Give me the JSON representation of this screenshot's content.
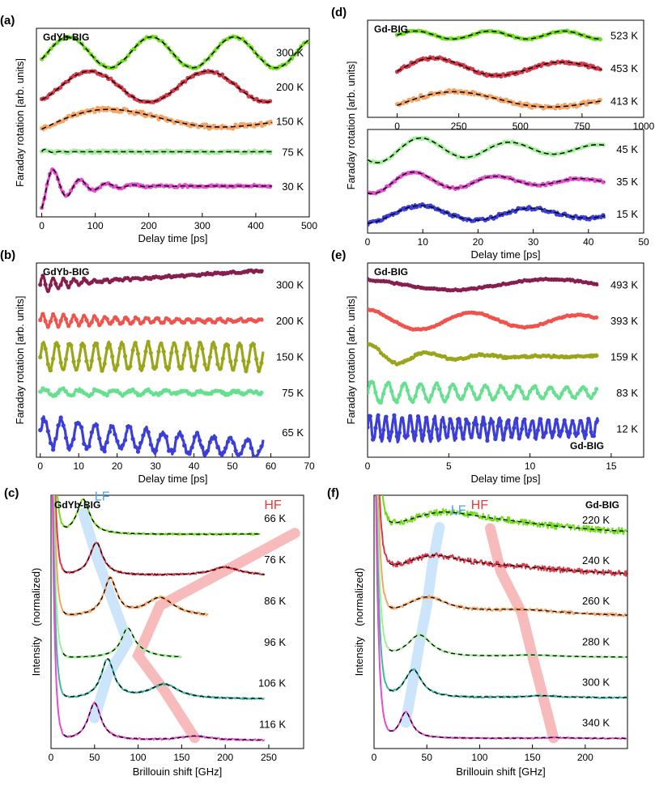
{
  "chart_data": [
    {
      "id": "a",
      "panel_label": "(a)",
      "type": "line",
      "title": "GdYb-BIG",
      "xlabel": "Delay time [ps]",
      "ylabel": "Faraday rotation [arb. units]",
      "xlim": [
        -10,
        500
      ],
      "xticks": [
        0,
        100,
        200,
        300,
        400,
        500
      ],
      "series": [
        {
          "name": "300 K",
          "color": "#6fdc1c",
          "offset": 5.0,
          "amp": 0.45,
          "period": 155,
          "phase": -0.45,
          "decay": 0,
          "noise": 0.03,
          "fit": true,
          "xmax": 500
        },
        {
          "name": "200 K",
          "color": "#d8394a",
          "offset": 4.0,
          "amp": 0.45,
          "period": 220,
          "phase": -1.0,
          "decay": 0,
          "noise": 0.035,
          "fit": true,
          "xmax": 430
        },
        {
          "name": "150 K",
          "color": "#f6a464",
          "offset": 3.0,
          "amp": 0.5,
          "period": 420,
          "phase": -0.5,
          "decay": 0.003,
          "noise": 0.06,
          "fit": true,
          "xmax": 430
        },
        {
          "name": "75 K",
          "color": "#9ef094",
          "offset": 2.1,
          "amp": 0.12,
          "period": 30,
          "phase": 0,
          "decay": 0.08,
          "noise": 0.04,
          "fit": true,
          "xmax": 430
        },
        {
          "name": "30 K",
          "color": "#e64bd0",
          "offset": 1.1,
          "amp": 0.7,
          "period": 50,
          "phase": -1.2,
          "decay": 0.018,
          "noise": 0.03,
          "fit": true,
          "xmax": 430
        }
      ]
    },
    {
      "id": "b",
      "panel_label": "(b)",
      "type": "line",
      "title": "GdYb-BIG",
      "xlabel": "Delay time [ps]",
      "ylabel": "Faraday rotation [arb. units]",
      "xlim": [
        -1,
        70
      ],
      "xticks": [
        0,
        10,
        20,
        30,
        40,
        50,
        60,
        70
      ],
      "series": [
        {
          "name": "300 K",
          "color": "#861f4e",
          "offset": 5.0,
          "amp": 0.25,
          "period": 2.7,
          "phase": 0,
          "decay": 0.12,
          "trend": 0.4,
          "noise": 0.03,
          "fit": false,
          "xmax": 58
        },
        {
          "name": "200 K",
          "color": "#f0524c",
          "offset": 4.0,
          "amp": 0.18,
          "period": 2.7,
          "phase": 0,
          "decay": 0.03,
          "trend": 0,
          "noise": 0.02,
          "fit": false,
          "xmax": 58
        },
        {
          "name": "150 K",
          "color": "#9aa51a",
          "offset": 3.0,
          "amp": 0.38,
          "period": 3.4,
          "phase": 0,
          "decay": 0,
          "trend": 0,
          "noise": 0.03,
          "fit": false,
          "xmax": 58
        },
        {
          "name": "75 K",
          "color": "#66e08e",
          "offset": 2.0,
          "amp": 0.1,
          "period": 4.5,
          "phase": 0,
          "decay": 0.02,
          "trend": 0,
          "noise": 0.04,
          "fit": false,
          "xmax": 58
        },
        {
          "name": "65 K",
          "color": "#3b3fd8",
          "offset": 0.9,
          "amp": 0.4,
          "period": 4.4,
          "phase": 0,
          "decay": 0.01,
          "trend": -0.5,
          "noise": 0.08,
          "fit": false,
          "xmax": 58
        }
      ]
    },
    {
      "id": "c",
      "panel_label": "(c)",
      "type": "line",
      "title": "GdYb-BIG",
      "xlabel": "Brillouin shift [GHz]",
      "ylabel": "Intensity　(normalized)",
      "xlim": [
        0,
        290
      ],
      "xticks": [
        0,
        50,
        100,
        150,
        200,
        250
      ],
      "lf_label": "LF",
      "hf_label": "HF",
      "lf_color": "#4aa3f0",
      "hf_color": "#e83b3b",
      "series": [
        {
          "name": "66 K",
          "color": "#6fdc1c",
          "offset": 5.0,
          "lf": 37,
          "lf_amp": 0.85,
          "hf": 280,
          "hf_amp": 0.05,
          "noise": 0.02,
          "xmax": 240
        },
        {
          "name": "76 K",
          "color": "#d8394a",
          "offset": 4.0,
          "lf": 52,
          "lf_amp": 0.8,
          "hf": 200,
          "hf_amp": 0.2,
          "noise": 0.02,
          "xmax": 245
        },
        {
          "name": "86 K",
          "color": "#f6a464",
          "offset": 3.0,
          "lf": 68,
          "lf_amp": 0.9,
          "hf": 125,
          "hf_amp": 0.45,
          "noise": 0.03,
          "xmax": 180
        },
        {
          "name": "96 K",
          "color": "#9ef094",
          "offset": 2.0,
          "lf": 88,
          "lf_amp": 0.65,
          "hf": 100,
          "hf_amp": 0.1,
          "noise": 0.02,
          "xmax": 150
        },
        {
          "name": "106 K",
          "color": "#3fb8a2",
          "offset": 1.0,
          "lf": 65,
          "lf_amp": 0.95,
          "hf": 130,
          "hf_amp": 0.35,
          "noise": 0.02,
          "xmax": 245
        },
        {
          "name": "116 K",
          "color": "#e64bd0",
          "offset": 0.0,
          "lf": 50,
          "lf_amp": 0.9,
          "hf": 165,
          "hf_amp": 0.1,
          "noise": 0.02,
          "xmax": 245
        }
      ]
    },
    {
      "id": "d_top",
      "panel_label": "(d)",
      "type": "line",
      "title": "Gd-BIG",
      "xlabel": "",
      "ylabel": "Faraday rotation [arb. units]",
      "xlim": [
        -120,
        1000
      ],
      "xticks": [
        0,
        250,
        500,
        750,
        1000
      ],
      "series": [
        {
          "name": "523 K",
          "color": "#6fdc1c",
          "offset": 3.0,
          "amp": 0.12,
          "period": 300,
          "phase": 0,
          "decay": 0,
          "noise": 0.02,
          "fit": true,
          "xmax": 830
        },
        {
          "name": "453 K",
          "color": "#d8394a",
          "offset": 2.0,
          "amp": 0.35,
          "period": 520,
          "phase": -0.3,
          "decay": 0.001,
          "noise": 0.04,
          "fit": true,
          "xmax": 830
        },
        {
          "name": "413 K",
          "color": "#f6a464",
          "offset": 1.0,
          "amp": 0.35,
          "period": 780,
          "phase": -0.4,
          "decay": 0.001,
          "noise": 0.06,
          "fit": true,
          "xmax": 830
        }
      ]
    },
    {
      "id": "d_bottom",
      "panel_label": "",
      "type": "line",
      "title": "",
      "xlabel": "Delay time [ps]",
      "ylabel": "",
      "xlim": [
        0,
        50
      ],
      "xticks": [
        0,
        10,
        20,
        30,
        40,
        50
      ],
      "series": [
        {
          "name": "45 K",
          "color": "#9ef094",
          "offset": 3.0,
          "amp": 0.45,
          "period": 16,
          "phase": -2.3,
          "decay": 0.03,
          "noise": 0.03,
          "fit": true,
          "xmax": 43
        },
        {
          "name": "35 K",
          "color": "#e64bd0",
          "offset": 2.0,
          "amp": 0.4,
          "period": 15,
          "phase": -2.0,
          "decay": 0.04,
          "noise": 0.03,
          "fit": true,
          "xmax": 43
        },
        {
          "name": "15 K",
          "color": "#3b3fd8",
          "offset": 1.0,
          "amp": 0.3,
          "period": 20,
          "phase": -1.5,
          "decay": 0.02,
          "noise": 0.05,
          "fit": true,
          "xmax": 43
        }
      ]
    },
    {
      "id": "e",
      "panel_label": "(e)",
      "type": "line",
      "title": "Gd-BIG",
      "xlabel": "Delay time [ps]",
      "ylabel": "Faraday rotation [arb. units]",
      "xlim": [
        0,
        17
      ],
      "xticks": [
        0,
        5,
        10,
        15
      ],
      "series": [
        {
          "name": "493 K",
          "color": "#861f4e",
          "offset": 5.0,
          "amp": 0.15,
          "period": 12,
          "phase": 2.0,
          "decay": 0,
          "noise": 0.02,
          "fit": false,
          "xmax": 14.2
        },
        {
          "name": "393 K",
          "color": "#f0524c",
          "offset": 4.0,
          "amp": 0.3,
          "period": 6.5,
          "phase": 1.6,
          "decay": 0.05,
          "noise": 0.02,
          "fit": false,
          "xmax": 14.2
        },
        {
          "name": "159 K",
          "color": "#9aa51a",
          "offset": 3.0,
          "amp": 0.35,
          "period": 3.5,
          "phase": 1.2,
          "decay": 0.3,
          "noise": 0.03,
          "fit": false,
          "xmax": 14.2
        },
        {
          "name": "83 K",
          "color": "#66e08e",
          "offset": 2.0,
          "amp": 0.3,
          "period": 1.0,
          "phase": 0,
          "decay": 0.06,
          "noise": 0.03,
          "fit": false,
          "xmax": 14.2
        },
        {
          "name": "12 K",
          "color": "#3b3fd8",
          "offset": 1.0,
          "amp": 0.35,
          "period": 0.5,
          "phase": 0,
          "decay": 0.03,
          "noise": 0.06,
          "fit": false,
          "xmax": 14.2
        }
      ],
      "note": "Gd-BIG"
    },
    {
      "id": "f",
      "panel_label": "(f)",
      "type": "line",
      "title": "Gd-BIG",
      "xlabel": "Brillouin shift [GHz]",
      "ylabel": "Intensity　(normalized)",
      "xlim": [
        0,
        240
      ],
      "xticks": [
        0,
        50,
        100,
        150,
        200
      ],
      "lf_label": "LF",
      "hf_label": "HF",
      "lf_color": "#4aa3f0",
      "hf_color": "#e83b3b",
      "series": [
        {
          "name": "220 K",
          "color": "#6fdc1c",
          "offset": 5.0,
          "lf": 62,
          "lf_amp": 0.35,
          "hf": 110,
          "hf_amp": 0.3,
          "width": 40,
          "noise": 0.08,
          "xmax": 240
        },
        {
          "name": "240 K",
          "color": "#d8394a",
          "offset": 4.0,
          "lf": 55,
          "lf_amp": 0.4,
          "hf": 120,
          "hf_amp": 0.2,
          "width": 35,
          "noise": 0.07,
          "xmax": 240
        },
        {
          "name": "260 K",
          "color": "#f6a464",
          "offset": 3.0,
          "lf": 50,
          "lf_amp": 0.45,
          "hf": 140,
          "hf_amp": 0.15,
          "width": 25,
          "noise": 0.04,
          "xmax": 240
        },
        {
          "name": "280 K",
          "color": "#9ef094",
          "offset": 2.0,
          "lf": 43,
          "lf_amp": 0.55,
          "hf": 150,
          "hf_amp": 0.05,
          "width": 14,
          "noise": 0.02,
          "xmax": 240
        },
        {
          "name": "300 K",
          "color": "#3fb8a2",
          "offset": 1.0,
          "lf": 37,
          "lf_amp": 0.7,
          "hf": 160,
          "hf_amp": 0.05,
          "width": 10,
          "noise": 0.02,
          "xmax": 240
        },
        {
          "name": "340 K",
          "color": "#e64bd0",
          "offset": 0.0,
          "lf": 30,
          "lf_amp": 0.65,
          "hf": 170,
          "hf_amp": 0.02,
          "width": 7,
          "noise": 0.015,
          "xmax": 240
        }
      ]
    }
  ]
}
